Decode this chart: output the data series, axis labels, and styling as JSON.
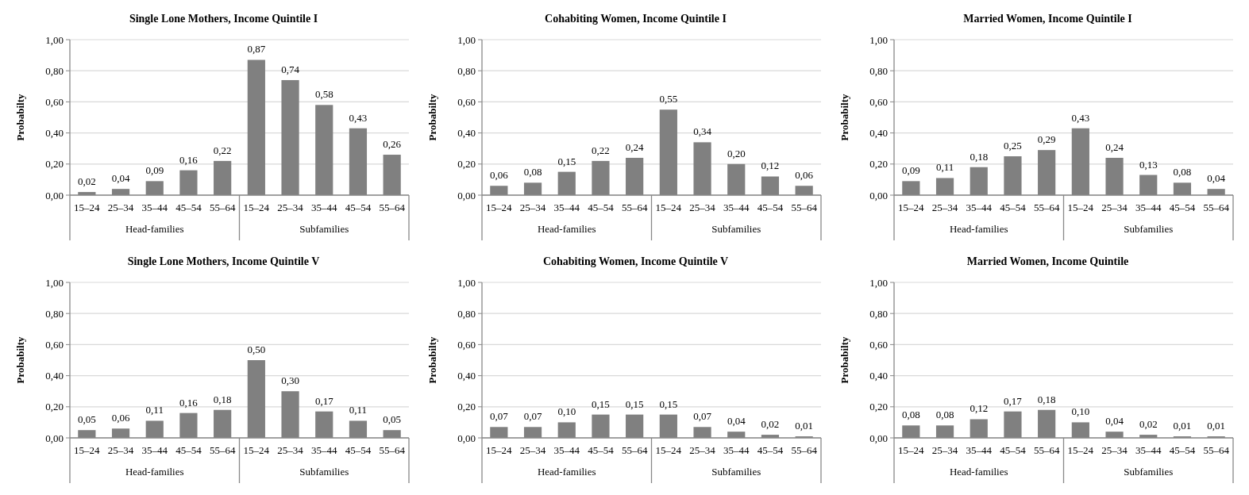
{
  "chart_data": [
    {
      "type": "bar",
      "title": "Single Lone Mothers, Income Quintile I",
      "ylabel": "Probabilty",
      "categories": [
        "15–24",
        "25–34",
        "35–44",
        "45–54",
        "55–64",
        "15–24",
        "25–34",
        "35–44",
        "45–54",
        "55–64"
      ],
      "values": [
        0.02,
        0.04,
        0.09,
        0.16,
        0.22,
        0.87,
        0.74,
        0.58,
        0.43,
        0.26
      ],
      "value_labels": [
        "0,02",
        "0,04",
        "0,09",
        "0,16",
        "0,22",
        "0,87",
        "0,74",
        "0,58",
        "0,43",
        "0,26"
      ],
      "color": "#808080",
      "ylim": [
        0,
        1
      ],
      "yticks": [
        {
          "value": 0,
          "label": "0,00"
        },
        {
          "value": 0.2,
          "label": "0,20"
        },
        {
          "value": 0.4,
          "label": "0,40"
        },
        {
          "value": 0.6,
          "label": "0,60"
        },
        {
          "value": 0.8,
          "label": "0,80"
        },
        {
          "value": 1,
          "label": "1,00"
        }
      ],
      "grid": "y",
      "annotations": [
        "Head-families",
        "Subfamilies"
      ]
    },
    {
      "type": "bar",
      "title": "Cohabiting Women, Income Quintile I",
      "ylabel": "Probabilty",
      "categories": [
        "15–24",
        "25–34",
        "35–44",
        "45–54",
        "55–64",
        "15–24",
        "25–34",
        "35–44",
        "45–54",
        "55–64"
      ],
      "values": [
        0.06,
        0.08,
        0.15,
        0.22,
        0.24,
        0.55,
        0.34,
        0.2,
        0.12,
        0.06
      ],
      "value_labels": [
        "0,06",
        "0,08",
        "0,15",
        "0,22",
        "0,24",
        "0,55",
        "0,34",
        "0,20",
        "0,12",
        "0,06"
      ],
      "color": "#808080",
      "ylim": [
        0,
        1
      ],
      "yticks": [
        {
          "value": 0,
          "label": "0,00"
        },
        {
          "value": 0.2,
          "label": "0,20"
        },
        {
          "value": 0.4,
          "label": "0,40"
        },
        {
          "value": 0.6,
          "label": "0,60"
        },
        {
          "value": 0.8,
          "label": "0,80"
        },
        {
          "value": 1,
          "label": "1,00"
        }
      ],
      "grid": "y",
      "annotations": [
        "Head-families",
        "Subfamilies"
      ]
    },
    {
      "type": "bar",
      "title": "Married Women, Income Quintile I",
      "ylabel": "Probabilty",
      "categories": [
        "15–24",
        "25–34",
        "35–44",
        "45–54",
        "55–64",
        "15–24",
        "25–34",
        "35–44",
        "45–54",
        "55–64"
      ],
      "values": [
        0.09,
        0.11,
        0.18,
        0.25,
        0.29,
        0.43,
        0.24,
        0.13,
        0.08,
        0.04
      ],
      "value_labels": [
        "0,09",
        "0,11",
        "0,18",
        "0,25",
        "0,29",
        "0,43",
        "0,24",
        "0,13",
        "0,08",
        "0,04"
      ],
      "color": "#808080",
      "ylim": [
        0,
        1
      ],
      "yticks": [
        {
          "value": 0,
          "label": "0,00"
        },
        {
          "value": 0.2,
          "label": "0,20"
        },
        {
          "value": 0.4,
          "label": "0,40"
        },
        {
          "value": 0.6,
          "label": "0,60"
        },
        {
          "value": 0.8,
          "label": "0,80"
        },
        {
          "value": 1,
          "label": "1,00"
        }
      ],
      "grid": "y",
      "annotations": [
        "Head-families",
        "Subfamilies"
      ]
    },
    {
      "type": "bar",
      "title": "Single Lone Mothers, Income Quintile V",
      "ylabel": "Probabilty",
      "categories": [
        "15–24",
        "25–34",
        "35–44",
        "45–54",
        "55–64",
        "15–24",
        "25–34",
        "35–44",
        "45–54",
        "55–64"
      ],
      "values": [
        0.05,
        0.06,
        0.11,
        0.16,
        0.18,
        0.5,
        0.3,
        0.17,
        0.11,
        0.05
      ],
      "value_labels": [
        "0,05",
        "0,06",
        "0,11",
        "0,16",
        "0,18",
        "0,50",
        "0,30",
        "0,17",
        "0,11",
        "0,05"
      ],
      "color": "#808080",
      "ylim": [
        0,
        1
      ],
      "yticks": [
        {
          "value": 0,
          "label": "0,00"
        },
        {
          "value": 0.2,
          "label": "0,20"
        },
        {
          "value": 0.4,
          "label": "0,40"
        },
        {
          "value": 0.6,
          "label": "0,60"
        },
        {
          "value": 0.8,
          "label": "0,80"
        },
        {
          "value": 1,
          "label": "1,00"
        }
      ],
      "grid": "y",
      "annotations": [
        "Head-families",
        "Subfamilies"
      ]
    },
    {
      "type": "bar",
      "title": "Cohabiting Women, Income Quintile V",
      "ylabel": "Probabilty",
      "categories": [
        "15–24",
        "25–34",
        "35–44",
        "45–54",
        "55–64",
        "15–24",
        "25–34",
        "35–44",
        "45–54",
        "55–64"
      ],
      "values": [
        0.07,
        0.07,
        0.1,
        0.15,
        0.15,
        0.15,
        0.07,
        0.04,
        0.02,
        0.01
      ],
      "value_labels": [
        "0,07",
        "0,07",
        "0,10",
        "0,15",
        "0,15",
        "0,15",
        "0,07",
        "0,04",
        "0,02",
        "0,01"
      ],
      "color": "#808080",
      "ylim": [
        0,
        1
      ],
      "yticks": [
        {
          "value": 0,
          "label": "0,00"
        },
        {
          "value": 0.2,
          "label": "0,20"
        },
        {
          "value": 0.4,
          "label": "0,40"
        },
        {
          "value": 0.6,
          "label": "0,60"
        },
        {
          "value": 0.8,
          "label": "0,80"
        },
        {
          "value": 1,
          "label": "1,00"
        }
      ],
      "grid": "y",
      "annotations": [
        "Head-families",
        "Subfamilies"
      ]
    },
    {
      "type": "bar",
      "title": "Married Women, Income Quintile",
      "ylabel": "Probabilty",
      "categories": [
        "15–24",
        "25–34",
        "35–44",
        "45–54",
        "55–64",
        "15–24",
        "25–34",
        "35–44",
        "45–54",
        "55–64"
      ],
      "values": [
        0.08,
        0.08,
        0.12,
        0.17,
        0.18,
        0.1,
        0.04,
        0.02,
        0.01,
        0.01
      ],
      "value_labels": [
        "0,08",
        "0,08",
        "0,12",
        "0,17",
        "0,18",
        "0,10",
        "0,04",
        "0,02",
        "0,01",
        "0,01"
      ],
      "color": "#808080",
      "ylim": [
        0,
        1
      ],
      "yticks": [
        {
          "value": 0,
          "label": "0,00"
        },
        {
          "value": 0.2,
          "label": "0,20"
        },
        {
          "value": 0.4,
          "label": "0,40"
        },
        {
          "value": 0.6,
          "label": "0,60"
        },
        {
          "value": 0.8,
          "label": "0,80"
        },
        {
          "value": 1,
          "label": "1,00"
        }
      ],
      "grid": "y",
      "annotations": [
        "Head-families",
        "Subfamilies"
      ]
    }
  ]
}
